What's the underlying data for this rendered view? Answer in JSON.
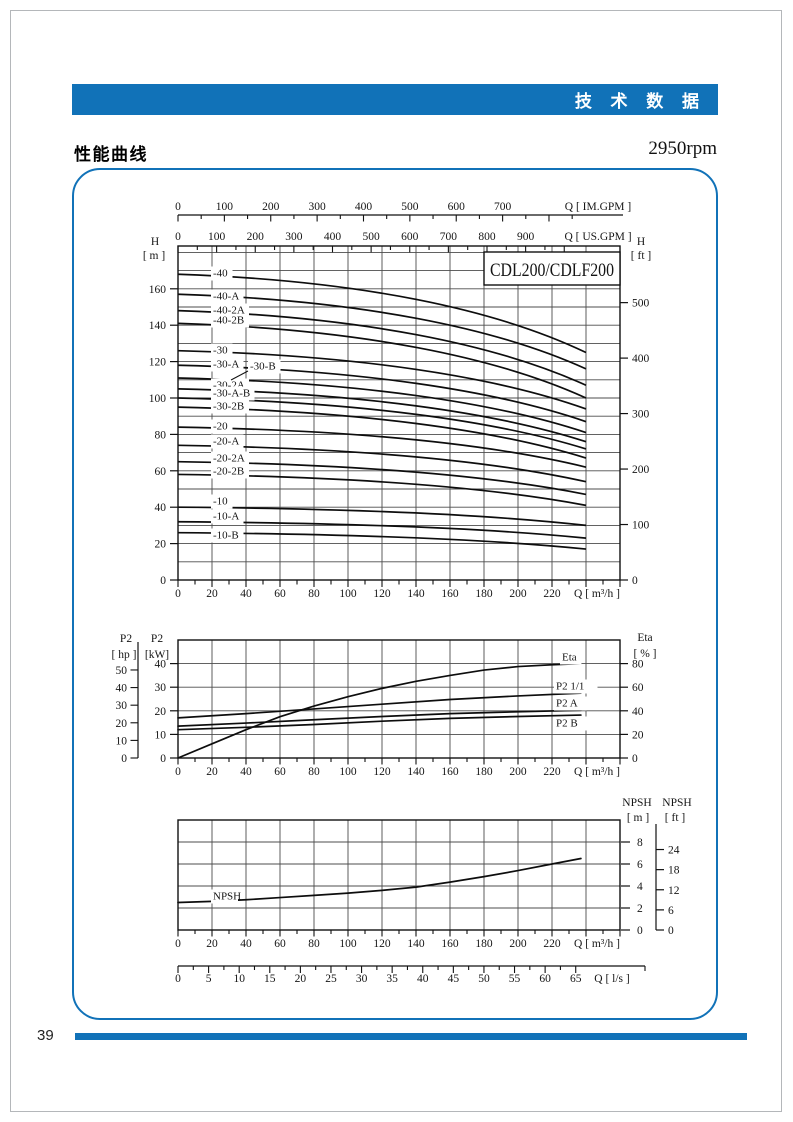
{
  "header": {
    "title": "技 术 数 据",
    "accent_color": "#1172b8"
  },
  "section": {
    "title": "性能曲线",
    "rpm": "2950rpm"
  },
  "footer": {
    "page_number": "39"
  },
  "chart_data": [
    {
      "id": "head-curves",
      "type": "line",
      "title": "CDL200/CDLF200",
      "x_im": {
        "label": "Q [ IM.GPM ]",
        "ticks": [
          0,
          100,
          200,
          300,
          400,
          500,
          600,
          700
        ]
      },
      "x_us": {
        "label": "Q [ US.GPM ]",
        "ticks": [
          0,
          100,
          200,
          300,
          400,
          500,
          600,
          700,
          800,
          900
        ]
      },
      "x_m3h": {
        "label": "Q [ m³/h ]",
        "ticks": [
          0,
          20,
          40,
          60,
          80,
          100,
          120,
          140,
          160,
          180,
          200,
          220
        ],
        "xlim": [
          0,
          260
        ]
      },
      "y_m": {
        "unit_top": "H",
        "unit": "[ m ]",
        "ticks": [
          0,
          20,
          40,
          60,
          80,
          100,
          120,
          140,
          160
        ],
        "ylim": [
          0,
          183
        ]
      },
      "y_ft": {
        "unit_top": "H",
        "unit": "[ ft ]",
        "ticks": [
          0,
          100,
          200,
          300,
          400,
          500
        ]
      },
      "q_end": 240,
      "series": [
        {
          "name": "-40",
          "h_start": 168,
          "h_end": 125
        },
        {
          "name": "-40-A",
          "h_start": 157,
          "h_end": 116
        },
        {
          "name": "-40-2A",
          "h_start": 148,
          "h_end": 107
        },
        {
          "name": "-40-2B",
          "h_start": 141,
          "h_end": 100
        },
        {
          "name": "-30",
          "h_start": 126,
          "h_end": 94
        },
        {
          "name": "-30-A",
          "h_start": 118,
          "h_end": 87
        },
        {
          "name": "-30-B",
          "h_start": 111,
          "h_end": 81
        },
        {
          "name": "-30-2A",
          "h_start": 105,
          "h_end": 76
        },
        {
          "name": "-30-A-B",
          "h_start": 100,
          "h_end": 72
        },
        {
          "name": "-30-2B",
          "h_start": 95,
          "h_end": 67
        },
        {
          "name": "-20",
          "h_start": 84,
          "h_end": 62
        },
        {
          "name": "-20-A",
          "h_start": 74,
          "h_end": 54
        },
        {
          "name": "-20-2A",
          "h_start": 65,
          "h_end": 47
        },
        {
          "name": "-20-2B",
          "h_start": 58,
          "h_end": 41
        },
        {
          "name": "-10",
          "h_start": 40,
          "h_end": 30
        },
        {
          "name": "-10-A",
          "h_start": 32,
          "h_end": 23
        },
        {
          "name": "-10-B",
          "h_start": 26,
          "h_end": 17
        }
      ]
    },
    {
      "id": "power-eta",
      "type": "line",
      "x_m3h": {
        "label": "Q [ m³/h ]",
        "ticks": [
          0,
          20,
          40,
          60,
          80,
          100,
          120,
          140,
          160,
          180,
          200,
          220
        ],
        "xlim": [
          0,
          260
        ]
      },
      "y_hp": {
        "unit_top": "P2",
        "unit": "[ hp ]",
        "ticks": [
          0,
          10,
          20,
          30,
          40,
          50
        ]
      },
      "y_kw": {
        "unit_top": "P2",
        "unit": "[kW]",
        "ticks": [
          0,
          10,
          20,
          30,
          40
        ],
        "ylim": [
          0,
          50
        ]
      },
      "y_eta": {
        "unit_top": "Eta",
        "unit": "[ % ]",
        "ticks": [
          0,
          20,
          40,
          60,
          80
        ]
      },
      "series": [
        {
          "name": "Eta",
          "axis": "eta",
          "points": [
            [
              0,
              0
            ],
            [
              20,
              12
            ],
            [
              40,
              24
            ],
            [
              60,
              35
            ],
            [
              80,
              44
            ],
            [
              100,
              52
            ],
            [
              120,
              59
            ],
            [
              140,
              65
            ],
            [
              160,
              70
            ],
            [
              180,
              74.5
            ],
            [
              200,
              77.5
            ],
            [
              220,
              79
            ],
            [
              237,
              80
            ]
          ]
        },
        {
          "name": "P2  1/1",
          "axis": "kw",
          "points": [
            [
              0,
              17
            ],
            [
              40,
              18.8
            ],
            [
              80,
              20.8
            ],
            [
              120,
              22.8
            ],
            [
              160,
              24.8
            ],
            [
              200,
              26.3
            ],
            [
              237,
              27.5
            ]
          ]
        },
        {
          "name": "P2  A",
          "axis": "kw",
          "points": [
            [
              0,
              13.5
            ],
            [
              40,
              14.8
            ],
            [
              80,
              16.2
            ],
            [
              120,
              17.6
            ],
            [
              160,
              18.8
            ],
            [
              200,
              19.6
            ],
            [
              237,
              20.2
            ]
          ]
        },
        {
          "name": "P2  B",
          "axis": "kw",
          "points": [
            [
              0,
              12
            ],
            [
              40,
              13
            ],
            [
              80,
              14.2
            ],
            [
              120,
              15.6
            ],
            [
              160,
              16.8
            ],
            [
              200,
              17.6
            ],
            [
              237,
              18.2
            ]
          ]
        }
      ]
    },
    {
      "id": "npsh",
      "type": "line",
      "x_m3h": {
        "label": "Q [ m³/h ]",
        "ticks": [
          0,
          20,
          40,
          60,
          80,
          100,
          120,
          140,
          160,
          180,
          200,
          220
        ],
        "xlim": [
          0,
          260
        ]
      },
      "x_ls": {
        "label": "Q [ l/s ]",
        "ticks": [
          0,
          5,
          10,
          15,
          20,
          25,
          30,
          35,
          40,
          45,
          50,
          55,
          60,
          65
        ]
      },
      "y_m": {
        "unit_top": "NPSH",
        "unit": "[ m ]",
        "ticks": [
          0,
          2,
          4,
          6,
          8
        ],
        "ylim": [
          0,
          10
        ]
      },
      "y_ft": {
        "unit_top": "NPSH",
        "unit": "[ ft ]",
        "ticks": [
          0,
          6,
          12,
          18,
          24
        ]
      },
      "series": [
        {
          "name": "NPSH",
          "points": [
            [
              0,
              2.5
            ],
            [
              20,
              2.6
            ],
            [
              40,
              2.75
            ],
            [
              60,
              2.95
            ],
            [
              80,
              3.15
            ],
            [
              100,
              3.35
            ],
            [
              120,
              3.6
            ],
            [
              140,
              3.9
            ],
            [
              160,
              4.35
            ],
            [
              180,
              4.85
            ],
            [
              200,
              5.4
            ],
            [
              220,
              6.0
            ],
            [
              237,
              6.5
            ]
          ]
        }
      ]
    }
  ]
}
